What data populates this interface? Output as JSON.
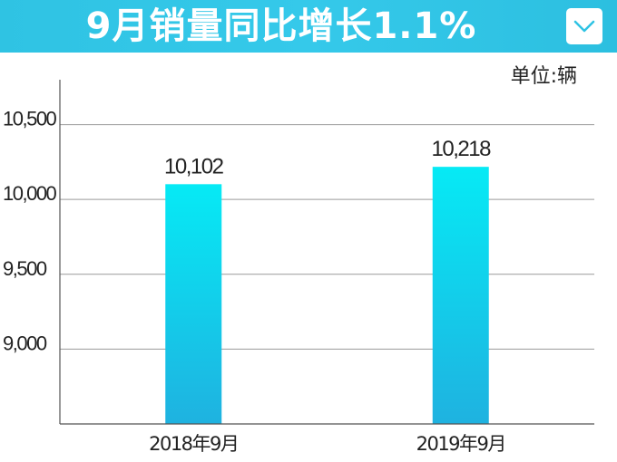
{
  "header": {
    "title": "9月销量同比增长1.1%",
    "accent_color": "#33c6e6",
    "dropdown_icon": "chevron-down-icon"
  },
  "unit_label": "单位:辆",
  "chart_data": {
    "type": "bar",
    "title": "9月销量同比增长1.1%",
    "categories": [
      "2018年9月",
      "2019年9月"
    ],
    "values": [
      10102,
      10218
    ],
    "data_labels": [
      "10,102",
      "10,218"
    ],
    "ylim": [
      8500,
      10800
    ],
    "yticks": [
      9000,
      9500,
      10000,
      10500
    ],
    "ytick_labels": [
      "9,000",
      "9,500",
      "10,000",
      "10,500"
    ],
    "grid": true,
    "bar_color_top": "#06eaf5",
    "bar_color_bottom": "#1fb2e0"
  }
}
